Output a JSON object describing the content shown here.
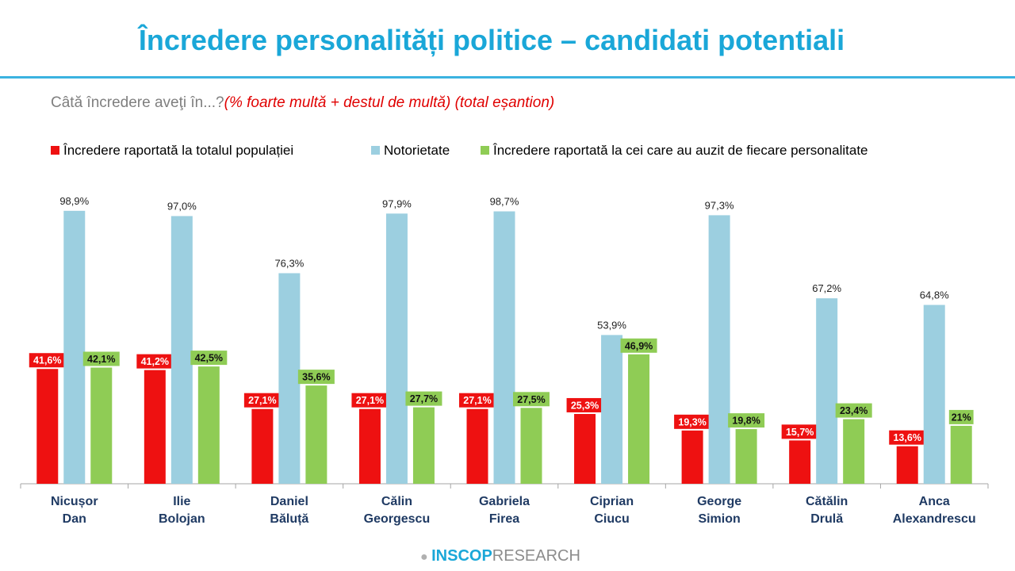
{
  "header": {
    "title": "Încredere personalități politice – candidati potentiali",
    "question": "Câtă încredere aveţi în...?",
    "question_note": "(% foarte multă + destul de multă) (total eșantion)"
  },
  "brand": {
    "part1": "INSCOP",
    "part2": "RESEARCH"
  },
  "colors": {
    "red": "#ee1111",
    "blue": "#9ccfe0",
    "green": "#8fcc55",
    "title": "#1aa7d8"
  },
  "chart_data": {
    "type": "bar",
    "categories": [
      [
        "Nicușor",
        "Dan"
      ],
      [
        "Ilie",
        "Bolojan"
      ],
      [
        "Daniel",
        "Băluță"
      ],
      [
        "Călin",
        "Georgescu"
      ],
      [
        "Gabriela",
        "Firea"
      ],
      [
        "Ciprian",
        "Ciucu"
      ],
      [
        "George",
        "Simion"
      ],
      [
        "Cătălin",
        "Drulă"
      ],
      [
        "Anca",
        "Alexandrescu"
      ]
    ],
    "series": [
      {
        "name": "Încredere raportată la totalul populației",
        "color": "red",
        "values": [
          41.6,
          41.2,
          27.1,
          27.1,
          27.1,
          25.3,
          19.3,
          15.7,
          13.6
        ],
        "labels": [
          "41,6%",
          "41,2%",
          "27,1%",
          "27,1%",
          "27,1%",
          "25,3%",
          "19,3%",
          "15,7%",
          "13,6%"
        ]
      },
      {
        "name": "Notorietate",
        "color": "blue",
        "values": [
          98.9,
          97.0,
          76.3,
          97.9,
          98.7,
          53.9,
          97.3,
          67.2,
          64.8
        ],
        "labels": [
          "98,9%",
          "97,0%",
          "76,3%",
          "97,9%",
          "98,7%",
          "53,9%",
          "97,3%",
          "67,2%",
          "64,8%"
        ]
      },
      {
        "name": "Încredere raportată la cei care au auzit de fiecare personalitate",
        "color": "green",
        "values": [
          42.1,
          42.5,
          35.6,
          27.7,
          27.5,
          46.9,
          19.8,
          23.4,
          21
        ],
        "labels": [
          "42,1%",
          "42,5%",
          "35,6%",
          "27,7%",
          "27,5%",
          "46,9%",
          "19,8%",
          "23,4%",
          "21%"
        ]
      }
    ],
    "ylim": [
      0,
      100
    ],
    "grid": false,
    "legend_position": "top"
  }
}
